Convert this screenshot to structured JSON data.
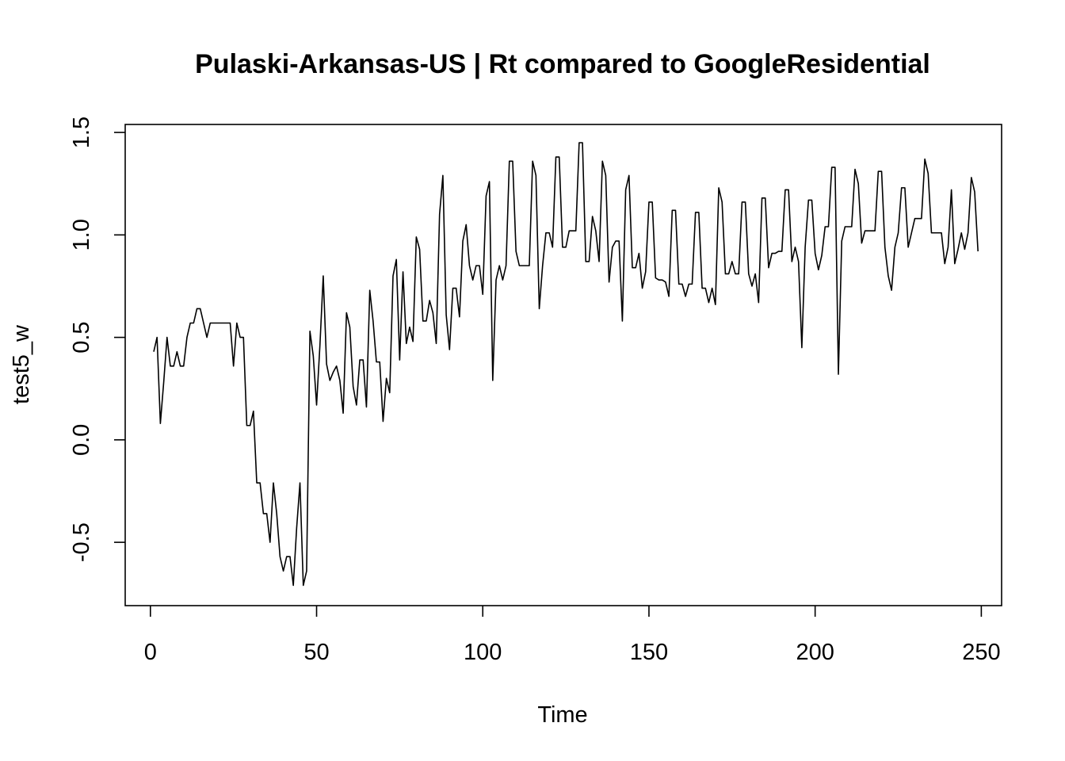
{
  "chart_data": {
    "type": "line",
    "title": "Pulaski-Arkansas-US | Rt compared to GoogleResidential",
    "xlabel": "Time",
    "ylabel": "test5_w",
    "xlim": [
      1,
      248
    ],
    "ylim": [
      -0.72,
      1.45
    ],
    "x_ticks": [
      0,
      50,
      100,
      150,
      200,
      250
    ],
    "y_ticks": [
      -0.5,
      0.0,
      0.5,
      1.0,
      1.5
    ],
    "x_tick_labels": [
      "0",
      "50",
      "100",
      "150",
      "200",
      "250"
    ],
    "y_tick_labels": [
      "-0.5",
      "0.0",
      "0.5",
      "1.0",
      "1.5"
    ],
    "grid": false,
    "legend": "none",
    "line_color": "#000000",
    "x_start": 1,
    "values": [
      0.43,
      0.5,
      0.08,
      0.28,
      0.5,
      0.36,
      0.36,
      0.43,
      0.36,
      0.36,
      0.5,
      0.57,
      0.57,
      0.64,
      0.64,
      0.57,
      0.5,
      0.57,
      0.57,
      0.57,
      0.57,
      0.57,
      0.57,
      0.57,
      0.36,
      0.57,
      0.5,
      0.5,
      0.07,
      0.07,
      0.14,
      -0.21,
      -0.21,
      -0.36,
      -0.36,
      -0.5,
      -0.21,
      -0.36,
      -0.57,
      -0.64,
      -0.57,
      -0.57,
      -0.71,
      -0.43,
      -0.21,
      -0.71,
      -0.64,
      0.53,
      0.41,
      0.17,
      0.46,
      0.8,
      0.37,
      0.29,
      0.33,
      0.36,
      0.29,
      0.13,
      0.62,
      0.55,
      0.26,
      0.17,
      0.39,
      0.39,
      0.16,
      0.73,
      0.58,
      0.38,
      0.38,
      0.09,
      0.3,
      0.23,
      0.8,
      0.88,
      0.39,
      0.82,
      0.47,
      0.55,
      0.48,
      0.99,
      0.93,
      0.58,
      0.58,
      0.68,
      0.62,
      0.47,
      1.1,
      1.29,
      0.61,
      0.44,
      0.74,
      0.74,
      0.6,
      0.97,
      1.05,
      0.85,
      0.78,
      0.85,
      0.85,
      0.71,
      1.19,
      1.26,
      0.29,
      0.78,
      0.85,
      0.78,
      0.85,
      1.36,
      1.36,
      0.92,
      0.85,
      0.85,
      0.85,
      0.85,
      1.36,
      1.29,
      0.64,
      0.85,
      1.01,
      1.01,
      0.94,
      1.38,
      1.38,
      0.94,
      0.94,
      1.02,
      1.02,
      1.02,
      1.45,
      1.45,
      0.87,
      0.87,
      1.09,
      1.02,
      0.87,
      1.36,
      1.29,
      0.77,
      0.94,
      0.97,
      0.97,
      0.58,
      1.22,
      1.29,
      0.84,
      0.84,
      0.91,
      0.74,
      0.82,
      1.16,
      1.16,
      0.79,
      0.78,
      0.78,
      0.77,
      0.7,
      1.12,
      1.12,
      0.76,
      0.76,
      0.7,
      0.76,
      0.76,
      1.11,
      1.11,
      0.74,
      0.74,
      0.67,
      0.74,
      0.66,
      1.23,
      1.16,
      0.81,
      0.81,
      0.87,
      0.81,
      0.81,
      1.16,
      1.16,
      0.81,
      0.75,
      0.81,
      0.67,
      1.18,
      1.18,
      0.84,
      0.91,
      0.91,
      0.92,
      0.92,
      1.22,
      1.22,
      0.87,
      0.94,
      0.87,
      0.45,
      0.94,
      1.17,
      1.17,
      0.91,
      0.83,
      0.9,
      1.04,
      1.04,
      1.33,
      1.33,
      0.32,
      0.97,
      1.04,
      1.04,
      1.04,
      1.32,
      1.25,
      0.96,
      1.02,
      1.02,
      1.02,
      1.02,
      1.31,
      1.31,
      0.94,
      0.8,
      0.73,
      0.94,
      1.01,
      1.23,
      1.23,
      0.94,
      1.01,
      1.08,
      1.08,
      1.08,
      1.37,
      1.3,
      1.01,
      1.01,
      1.01,
      1.01,
      0.86,
      0.94,
      1.22,
      0.86,
      0.93,
      1.01,
      0.93,
      1.01,
      1.28,
      1.21,
      0.92
    ]
  }
}
